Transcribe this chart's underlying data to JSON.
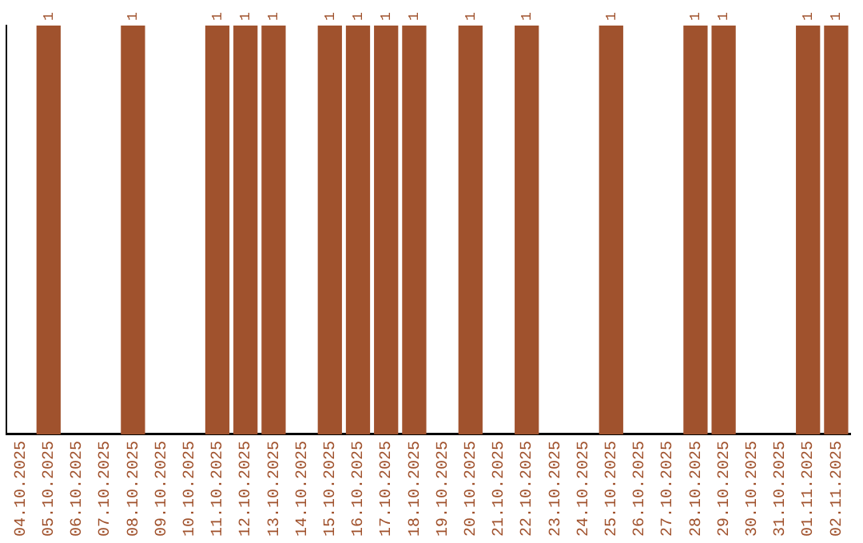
{
  "chart_data": {
    "type": "bar",
    "ylim": [
      0,
      1
    ],
    "tick_labels": "x",
    "color": "#a0522d",
    "categories": [
      "04.10.2025",
      "05.10.2025",
      "06.10.2025",
      "07.10.2025",
      "08.10.2025",
      "09.10.2025",
      "10.10.2025",
      "11.10.2025",
      "12.10.2025",
      "13.10.2025",
      "14.10.2025",
      "15.10.2025",
      "16.10.2025",
      "17.10.2025",
      "18.10.2025",
      "19.10.2025",
      "20.10.2025",
      "21.10.2025",
      "22.10.2025",
      "23.10.2025",
      "24.10.2025",
      "25.10.2025",
      "26.10.2025",
      "27.10.2025",
      "28.10.2025",
      "29.10.2025",
      "30.10.2025",
      "31.10.2025",
      "01.11.2025",
      "02.11.2025"
    ],
    "values": [
      0,
      1,
      0,
      0,
      1,
      0,
      0,
      1,
      1,
      1,
      0,
      1,
      1,
      1,
      1,
      0,
      1,
      0,
      1,
      0,
      0,
      1,
      0,
      0,
      1,
      1,
      0,
      0,
      1,
      1
    ],
    "value_labels": [
      null,
      "1",
      null,
      null,
      "1",
      null,
      null,
      "1",
      "1",
      "1",
      null,
      "1",
      "1",
      "1",
      "1",
      null,
      "1",
      null,
      "1",
      null,
      null,
      "1",
      null,
      null,
      "1",
      "1",
      null,
      null,
      "1",
      "1"
    ],
    "grid": false,
    "legend": false
  }
}
